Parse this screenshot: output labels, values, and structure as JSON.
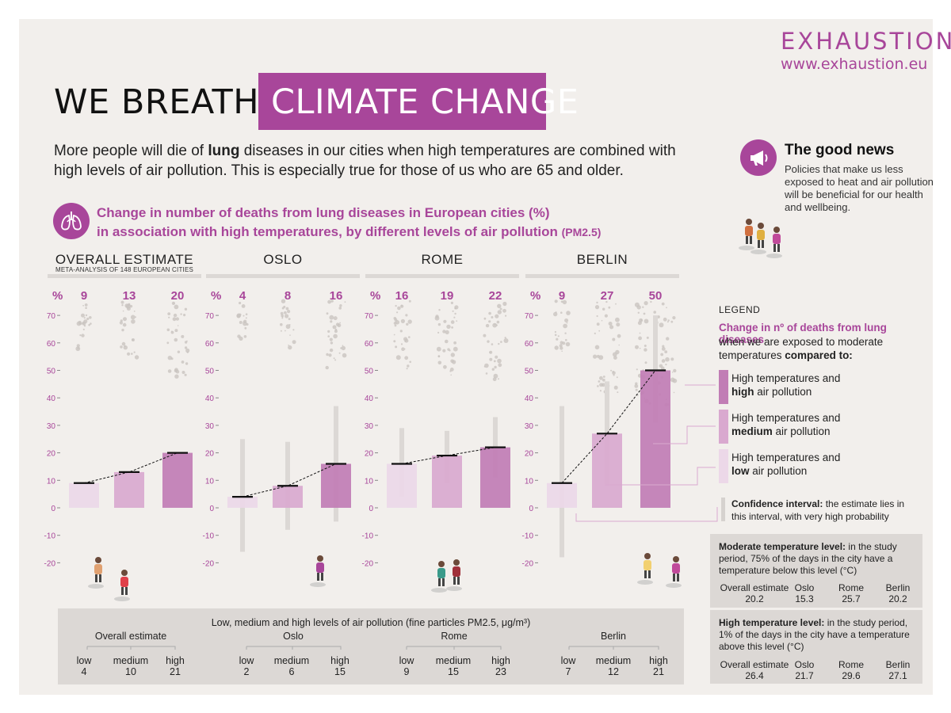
{
  "brand": {
    "name": "EXHAUSTION",
    "url": "www.exhaustion.eu"
  },
  "title": {
    "left": "WE BREATHE",
    "right": "CLIMATE CHANGE"
  },
  "intro": {
    "part1": "More people will die of ",
    "bold": "lung",
    "part2": " diseases in our cities when high temperatures are combined with high levels of air pollution. This is especially true for those of us who are 65 and older."
  },
  "good_news": {
    "title": "The good news",
    "text": "Policies that make us less exposed to heat and air pollution will be beneficial for our health and wellbeing.",
    "icon": "megaphone-icon"
  },
  "subtitle": {
    "line1": "Change in number of deaths from lung diseases in European cities (%)",
    "line2": "in association with high temperatures, by different levels of air pollution",
    "pm": "(PM2.5)",
    "icon": "lungs-icon"
  },
  "chart_data": {
    "type": "bar",
    "unit_label": "%",
    "ylim": [
      -20,
      70
    ],
    "yticks": [
      "70",
      "60",
      "50",
      "40",
      "30",
      "20",
      "10",
      "0",
      "-10",
      "-20"
    ],
    "levels": [
      "low",
      "medium",
      "high"
    ],
    "colors": {
      "low": "#ecd8e8",
      "medium": "#d9a9cf",
      "high": "#c17db5",
      "ci": "#dcd8d5",
      "accent": "#a8469a"
    },
    "panels": [
      {
        "title": "OVERALL ESTIMATE",
        "subtitle": "META-ANALYSIS OF 148 EUROPEAN CITIES",
        "values": [
          9,
          13,
          20
        ],
        "labels": [
          "9",
          "13",
          "20"
        ],
        "ci": null
      },
      {
        "title": "OSLO",
        "subtitle": "",
        "values": [
          4,
          8,
          16
        ],
        "labels": [
          "4",
          "8",
          "16"
        ],
        "ci": [
          [
            -16,
            25
          ],
          [
            -8,
            24
          ],
          [
            -5,
            37
          ]
        ]
      },
      {
        "title": "ROME",
        "subtitle": "",
        "values": [
          16,
          19,
          22
        ],
        "labels": [
          "16",
          "19",
          "22"
        ],
        "ci": [
          [
            4,
            29
          ],
          [
            9,
            28
          ],
          [
            11,
            33
          ]
        ]
      },
      {
        "title": "BERLIN",
        "subtitle": "",
        "values": [
          9,
          27,
          50
        ],
        "labels": [
          "9",
          "27",
          "50"
        ],
        "ci": [
          [
            -18,
            37
          ],
          [
            8,
            46
          ],
          [
            31,
            70
          ]
        ]
      }
    ]
  },
  "legend": {
    "head": "LEGEND",
    "title": "Change in nº of deaths from lung diseases",
    "sub_a": "when we are exposed to moderate temperatures ",
    "sub_b": "compared to:",
    "items": [
      {
        "line1": "High temperatures and",
        "bold": "high",
        "rest": " air pollution",
        "color": "#c17db5"
      },
      {
        "line1": "High temperatures and",
        "bold": "medium",
        "rest": " air pollution",
        "color": "#d9a9cf"
      },
      {
        "line1": "High temperatures and",
        "bold": "low",
        "rest": " air pollution",
        "color": "#ecd8e8"
      }
    ],
    "ci_bold": "Confidence interval:",
    "ci_rest": " the estimate lies in this interval, with very high probability"
  },
  "moderate": {
    "bold": "Moderate temperature level:",
    "rest": " in the study period, 75% of the days in the city have a temperature below this level (°C)",
    "cols": [
      {
        "label": "Overall estimate",
        "value": "20.2"
      },
      {
        "label": "Oslo",
        "value": "15.3"
      },
      {
        "label": "Rome",
        "value": "25.7"
      },
      {
        "label": "Berlin",
        "value": "20.2"
      }
    ]
  },
  "high": {
    "bold": "High temperature level:",
    "rest": " in the study period, 1% of the days in the city have a temperature above this level (°C)",
    "cols": [
      {
        "label": "Overall estimate",
        "value": "26.4"
      },
      {
        "label": "Oslo",
        "value": "21.7"
      },
      {
        "label": "Rome",
        "value": "29.6"
      },
      {
        "label": "Berlin",
        "value": "27.1"
      }
    ]
  },
  "pollution": {
    "title": "Low, medium and high levels of air pollution (fine particles PM2.5, μg/m³)",
    "groups": [
      {
        "name": "Overall estimate",
        "levels": [
          {
            "label": "low",
            "value": "4"
          },
          {
            "label": "medium",
            "value": "10"
          },
          {
            "label": "high",
            "value": "21"
          }
        ]
      },
      {
        "name": "Oslo",
        "levels": [
          {
            "label": "low",
            "value": "2"
          },
          {
            "label": "medium",
            "value": "6"
          },
          {
            "label": "high",
            "value": "15"
          }
        ]
      },
      {
        "name": "Rome",
        "levels": [
          {
            "label": "low",
            "value": "9"
          },
          {
            "label": "medium",
            "value": "15"
          },
          {
            "label": "high",
            "value": "23"
          }
        ]
      },
      {
        "name": "Berlin",
        "levels": [
          {
            "label": "low",
            "value": "7"
          },
          {
            "label": "medium",
            "value": "12"
          },
          {
            "label": "high",
            "value": "21"
          }
        ]
      }
    ]
  }
}
